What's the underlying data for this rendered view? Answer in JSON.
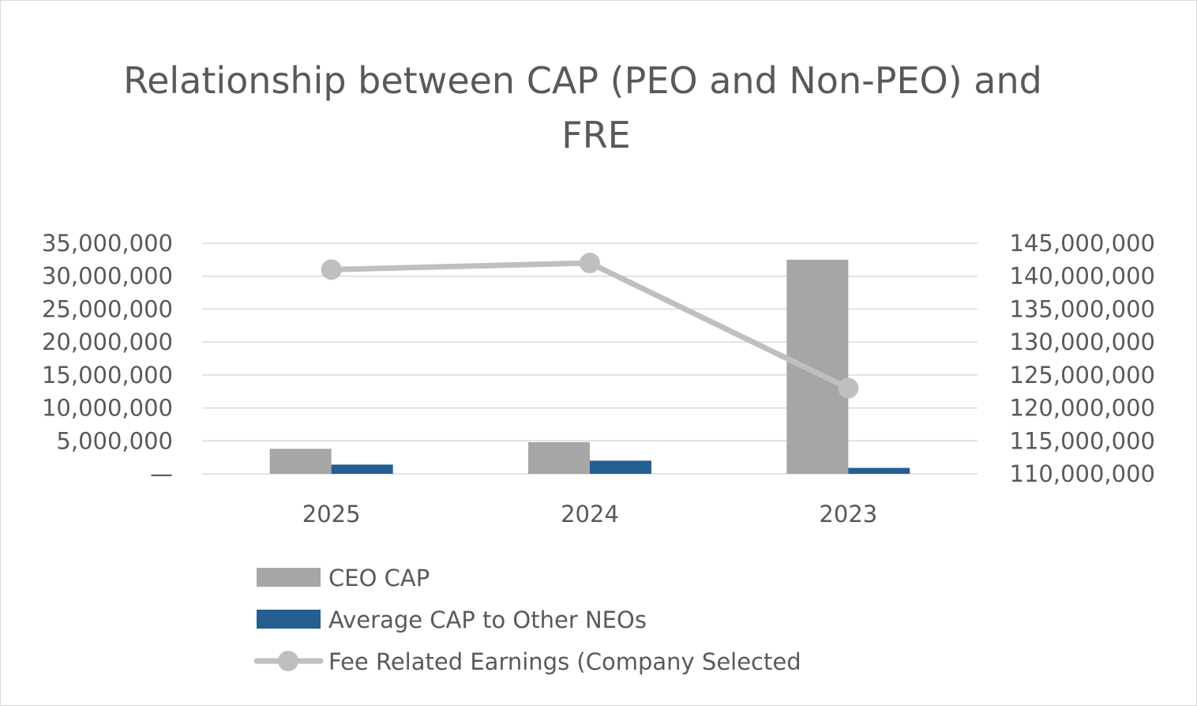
{
  "chart_data": {
    "type": "bar",
    "title": "Relationship between CAP (PEO and Non-PEO) and FRE",
    "title_lines": [
      "Relationship between CAP (PEO and Non-PEO) and",
      "FRE"
    ],
    "categories": [
      "2025",
      "2024",
      "2023"
    ],
    "series": [
      {
        "name": "CEO CAP",
        "type": "bar",
        "axis": "left",
        "values": [
          3800000,
          4800000,
          32500000
        ],
        "color": "#a6a6a6"
      },
      {
        "name": "Average CAP to Other NEOs",
        "type": "bar",
        "axis": "left",
        "values": [
          1400000,
          2000000,
          900000
        ],
        "color": "#255e91"
      },
      {
        "name": "Fee Related Earnings (Company Selected",
        "type": "line",
        "axis": "right",
        "values": [
          141000000,
          142000000,
          123000000
        ],
        "color": "#bfbfbf"
      }
    ],
    "y_left": {
      "min": 0,
      "max": 35000000,
      "ticks": [
        0,
        5000000,
        10000000,
        15000000,
        20000000,
        25000000,
        30000000,
        35000000
      ],
      "tick_labels": [
        "—",
        "5,000,000",
        "10,000,000",
        "15,000,000",
        "20,000,000",
        "25,000,000",
        "30,000,000",
        "35,000,000"
      ]
    },
    "y_right": {
      "min": 110000000,
      "max": 145000000,
      "ticks": [
        110000000,
        115000000,
        120000000,
        125000000,
        130000000,
        135000000,
        140000000,
        145000000
      ],
      "tick_labels": [
        "110,000,000",
        "115,000,000",
        "120,000,000",
        "125,000,000",
        "130,000,000",
        "135,000,000",
        "140,000,000",
        "145,000,000"
      ]
    },
    "grid": true,
    "legend_position": "bottom"
  }
}
